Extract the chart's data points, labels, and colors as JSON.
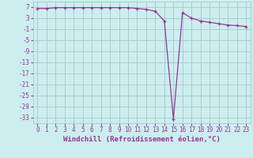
{
  "x": [
    0,
    1,
    2,
    3,
    4,
    5,
    6,
    7,
    8,
    9,
    10,
    11,
    12,
    13,
    14,
    15,
    16,
    17,
    18,
    19,
    20,
    21,
    22,
    23
  ],
  "y": [
    6.5,
    6.5,
    6.8,
    6.8,
    6.8,
    6.8,
    6.8,
    6.8,
    6.8,
    6.8,
    6.8,
    6.5,
    6.2,
    5.5,
    2.0,
    -33.5,
    5.0,
    3.0,
    2.0,
    1.5,
    1.0,
    0.5,
    0.3,
    0.0
  ],
  "line_color": "#993399",
  "marker": "+",
  "bg_color": "#cceeee",
  "grid_color": "#aacccc",
  "xlabel": "Windchill (Refroidissement éolien,°C)",
  "yticks": [
    7,
    3,
    -1,
    -5,
    -9,
    -13,
    -17,
    -21,
    -25,
    -29,
    -33
  ],
  "xticks": [
    0,
    1,
    2,
    3,
    4,
    5,
    6,
    7,
    8,
    9,
    10,
    11,
    12,
    13,
    14,
    15,
    16,
    17,
    18,
    19,
    20,
    21,
    22,
    23
  ],
  "ylim": [
    -35,
    9
  ],
  "xlim": [
    -0.5,
    23.5
  ],
  "font_color": "#993399",
  "tick_fontsize": 5.5,
  "xlabel_fontsize": 6.5
}
